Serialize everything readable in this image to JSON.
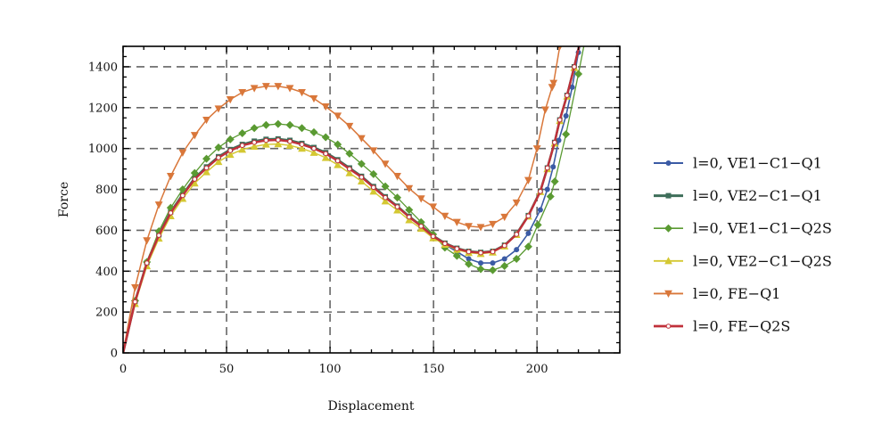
{
  "chart_data": {
    "type": "line",
    "title": "",
    "xlabel": "Displacement",
    "ylabel": "Force",
    "xlim": [
      0,
      240
    ],
    "ylim": [
      0,
      1500
    ],
    "xticks": [
      0,
      50,
      100,
      150,
      200
    ],
    "yticks": [
      0,
      200,
      400,
      600,
      800,
      1000,
      1200,
      1400
    ],
    "grid": "dashed, at major ticks",
    "legend_position": "right, outside",
    "series": [
      {
        "name": "l=0, VE1−C1−Q1",
        "color": "#3b5ba5",
        "marker": "circle",
        "x": [
          0,
          5.8,
          11.5,
          17.3,
          23,
          28.8,
          34.6,
          40.3,
          46.1,
          51.8,
          57.6,
          63.4,
          69.1,
          74.9,
          80.6,
          86.4,
          92.2,
          97.9,
          103.7,
          109.4,
          115.2,
          121,
          126.7,
          132.5,
          138.2,
          144,
          149.8,
          155.5,
          161.3,
          167,
          172.8,
          178.6,
          184.3,
          190.1,
          195.8,
          201.6,
          205,
          207.8,
          210.5,
          214,
          217,
          220,
          222
        ],
        "y": [
          0,
          250,
          440,
          575,
          688,
          772,
          852,
          908,
          958,
          993,
          1018,
          1034,
          1043,
          1045,
          1038,
          1023,
          1003,
          978,
          943,
          903,
          862,
          812,
          762,
          716,
          666,
          620,
          572,
          530,
          495,
          460,
          440,
          440,
          460,
          505,
          585,
          700,
          800,
          910,
          1040,
          1160,
          1300,
          1470,
          1560
        ]
      },
      {
        "name": "l=0, VE2−C1−Q1",
        "color": "#3e6e5a",
        "marker": "square",
        "x": [
          0,
          5.8,
          11.5,
          17.3,
          23,
          28.8,
          34.6,
          40.3,
          46.1,
          51.8,
          57.6,
          63.4,
          69.1,
          74.9,
          80.6,
          86.4,
          92.2,
          97.9,
          103.7,
          109.4,
          115.2,
          121,
          126.7,
          132.5,
          138.2,
          144,
          149.8,
          155.5,
          161.3,
          167,
          172.8,
          178.6,
          184.3,
          190.1,
          195.8,
          201.6,
          205,
          208.5,
          211,
          214.5,
          218,
          221
        ],
        "y": [
          0,
          252,
          442,
          578,
          690,
          775,
          855,
          910,
          960,
          995,
          1020,
          1036,
          1045,
          1047,
          1040,
          1025,
          1005,
          980,
          945,
          905,
          864,
          814,
          764,
          718,
          668,
          622,
          573,
          537,
          512,
          497,
          492,
          497,
          527,
          582,
          672,
          792,
          905,
          1030,
          1140,
          1260,
          1400,
          1530
        ]
      },
      {
        "name": "l=0, VE1−C1−Q2S",
        "color": "#5a9a32",
        "marker": "diamond",
        "x": [
          0,
          5.8,
          11.5,
          17.3,
          23,
          28.8,
          34.6,
          40.3,
          46.1,
          51.8,
          57.6,
          63.4,
          69.1,
          74.9,
          80.6,
          86.4,
          92.2,
          97.9,
          103.7,
          109.4,
          115.2,
          121,
          126.7,
          132.5,
          138.2,
          144,
          149.8,
          155.5,
          161.3,
          167,
          172.8,
          178.6,
          184.3,
          190.1,
          195.8,
          200.4,
          206.5,
          208.6,
          214,
          220,
          223
        ],
        "y": [
          0,
          255,
          445,
          595,
          710,
          800,
          880,
          950,
          1005,
          1045,
          1075,
          1100,
          1115,
          1120,
          1115,
          1100,
          1080,
          1055,
          1020,
          975,
          925,
          875,
          815,
          760,
          700,
          640,
          580,
          515,
          475,
          435,
          410,
          405,
          425,
          460,
          520,
          626,
          765,
          839,
          1070,
          1365,
          1520
        ]
      },
      {
        "name": "l=0, VE2−C1−Q2S",
        "color": "#d4c832",
        "marker": "triangle-up",
        "x": [
          0,
          5.8,
          11.5,
          17.3,
          23,
          28.8,
          34.6,
          40.3,
          46.1,
          51.8,
          57.6,
          63.4,
          69.1,
          74.9,
          80.6,
          86.4,
          92.2,
          97.9,
          103.7,
          109.4,
          115.2,
          121,
          126.7,
          132.5,
          138.2,
          144,
          149.8,
          155.5,
          161.3,
          167,
          172.8,
          178.6,
          184.3,
          190.1,
          195.8,
          201.6,
          205,
          208.5,
          211,
          214.5,
          218,
          221
        ],
        "y": [
          0,
          240,
          425,
          560,
          670,
          755,
          830,
          885,
          935,
          970,
          995,
          1010,
          1020,
          1022,
          1015,
          1000,
          980,
          955,
          920,
          880,
          840,
          790,
          742,
          698,
          650,
          608,
          562,
          530,
          505,
          490,
          485,
          492,
          522,
          578,
          668,
          788,
          900,
          1025,
          1135,
          1255,
          1395,
          1525
        ]
      },
      {
        "name": "l=0, FE−Q1",
        "color": "#d9773a",
        "marker": "triangle-down",
        "x": [
          0,
          5.8,
          11.5,
          17.3,
          23,
          28.8,
          34.6,
          40.3,
          46.1,
          51.8,
          57.6,
          63.4,
          69.1,
          74.9,
          80.6,
          86.4,
          92.2,
          97.9,
          103.7,
          109.4,
          115.2,
          121,
          126.7,
          132.5,
          138.2,
          144,
          149.8,
          155.5,
          161.3,
          167,
          172.8,
          178.6,
          184.3,
          190.1,
          195.8,
          200,
          204,
          207.3,
          208,
          211
        ],
        "y": [
          0,
          320,
          550,
          725,
          865,
          980,
          1065,
          1140,
          1195,
          1240,
          1275,
          1295,
          1305,
          1305,
          1295,
          1275,
          1245,
          1205,
          1160,
          1110,
          1050,
          990,
          925,
          865,
          805,
          755,
          715,
          670,
          640,
          620,
          615,
          630,
          665,
          735,
          845,
          1000,
          1190,
          1300,
          1320,
          1500
        ]
      },
      {
        "name": "l=0, FE−Q2S",
        "color": "#c0303a",
        "marker": "open-circle",
        "x": [
          0,
          5.8,
          11.5,
          17.3,
          23,
          28.8,
          34.6,
          40.3,
          46.1,
          51.8,
          57.6,
          63.4,
          69.1,
          74.9,
          80.6,
          86.4,
          92.2,
          97.9,
          103.7,
          109.4,
          115.2,
          121,
          126.7,
          132.5,
          138.2,
          144,
          149.8,
          155.5,
          161.3,
          167,
          172.8,
          178.6,
          184.3,
          190.1,
          195.8,
          201.6,
          205,
          208.5,
          211,
          214.5,
          218,
          221
        ],
        "y": [
          0,
          250,
          440,
          575,
          685,
          770,
          850,
          905,
          955,
          990,
          1015,
          1030,
          1040,
          1042,
          1035,
          1020,
          1000,
          975,
          940,
          900,
          860,
          810,
          760,
          715,
          665,
          620,
          570,
          535,
          510,
          495,
          490,
          495,
          525,
          580,
          670,
          790,
          905,
          1030,
          1140,
          1260,
          1400,
          1530
        ]
      }
    ]
  }
}
